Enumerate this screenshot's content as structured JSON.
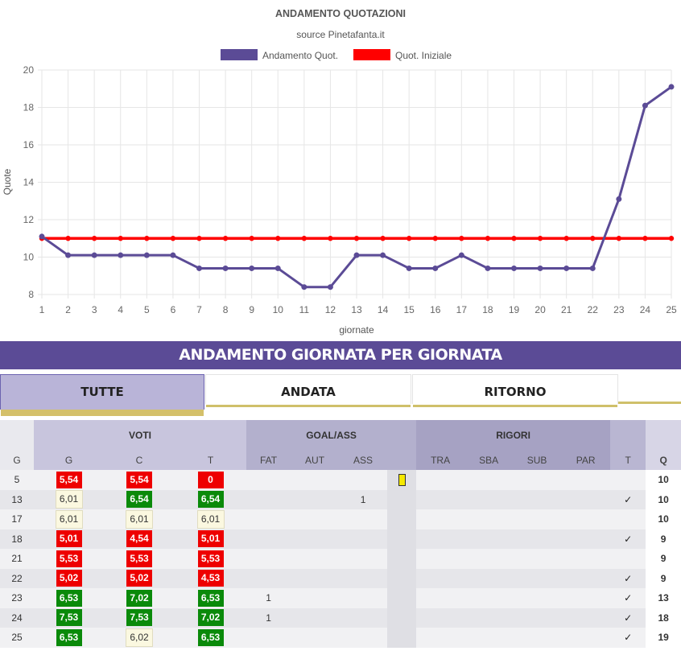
{
  "chart_data": {
    "type": "line",
    "title": "ANDAMENTO QUOTAZIONI",
    "subtitle": "source Pinetafanta.it",
    "xlabel": "giornate",
    "ylabel": "Quote",
    "x": [
      1,
      2,
      3,
      4,
      5,
      6,
      7,
      8,
      9,
      10,
      11,
      12,
      13,
      14,
      15,
      16,
      17,
      18,
      19,
      20,
      21,
      22,
      23,
      24,
      25
    ],
    "ylim": [
      8,
      20
    ],
    "yticks": [
      8,
      10,
      12,
      14,
      16,
      18,
      20
    ],
    "grid": true,
    "legend": "top",
    "series": [
      {
        "name": "Andamento Quot.",
        "color": "#5b4b96",
        "values": [
          11.1,
          10.1,
          10.1,
          10.1,
          10.1,
          10.1,
          9.4,
          9.4,
          9.4,
          9.4,
          8.4,
          8.4,
          10.1,
          10.1,
          9.4,
          9.4,
          10.1,
          9.4,
          9.4,
          9.4,
          9.4,
          9.4,
          13.1,
          18.1,
          19.1
        ]
      },
      {
        "name": "Quot. Iniziale",
        "color": "#ff0000",
        "values": [
          11,
          11,
          11,
          11,
          11,
          11,
          11,
          11,
          11,
          11,
          11,
          11,
          11,
          11,
          11,
          11,
          11,
          11,
          11,
          11,
          11,
          11,
          11,
          11,
          11
        ]
      }
    ]
  },
  "section_title": "ANDAMENTO GIORNATA PER GIORNATA",
  "tabs": [
    {
      "label": "TUTTE",
      "active": true
    },
    {
      "label": "ANDATA",
      "active": false
    },
    {
      "label": "RITORNO",
      "active": false
    }
  ],
  "table": {
    "groups": {
      "voti": "VOTI",
      "goal": "GOAL/ASS",
      "rigori": "RIGORI"
    },
    "columns": {
      "g": "G",
      "vg": "G",
      "vc": "C",
      "vt": "T",
      "fat": "FAT",
      "aut": "AUT",
      "ass": "ASS",
      "tra": "TRA",
      "sba": "SBA",
      "sub": "SUB",
      "par": "PAR",
      "t": "T",
      "q": "Q"
    },
    "rows": [
      {
        "g": "5",
        "vg": {
          "v": "5,54",
          "c": "red"
        },
        "vc": {
          "v": "5,54",
          "c": "red"
        },
        "vt": {
          "v": "0",
          "c": "red"
        },
        "fat": "",
        "aut": "",
        "ass": "",
        "card": "yellow",
        "t": "",
        "q": "10"
      },
      {
        "g": "13",
        "vg": {
          "v": "6,01",
          "c": "neutral"
        },
        "vc": {
          "v": "6,54",
          "c": "green"
        },
        "vt": {
          "v": "6,54",
          "c": "green"
        },
        "fat": "",
        "aut": "",
        "ass": "1",
        "card": "",
        "t": "✓",
        "q": "10"
      },
      {
        "g": "17",
        "vg": {
          "v": "6,01",
          "c": "neutral"
        },
        "vc": {
          "v": "6,01",
          "c": "neutral"
        },
        "vt": {
          "v": "6,01",
          "c": "neutral"
        },
        "fat": "",
        "aut": "",
        "ass": "",
        "card": "",
        "t": "",
        "q": "10"
      },
      {
        "g": "18",
        "vg": {
          "v": "5,01",
          "c": "red"
        },
        "vc": {
          "v": "4,54",
          "c": "red"
        },
        "vt": {
          "v": "5,01",
          "c": "red"
        },
        "fat": "",
        "aut": "",
        "ass": "",
        "card": "",
        "t": "✓",
        "q": "9"
      },
      {
        "g": "21",
        "vg": {
          "v": "5,53",
          "c": "red"
        },
        "vc": {
          "v": "5,53",
          "c": "red"
        },
        "vt": {
          "v": "5,53",
          "c": "red"
        },
        "fat": "",
        "aut": "",
        "ass": "",
        "card": "",
        "t": "",
        "q": "9"
      },
      {
        "g": "22",
        "vg": {
          "v": "5,02",
          "c": "red"
        },
        "vc": {
          "v": "5,02",
          "c": "red"
        },
        "vt": {
          "v": "4,53",
          "c": "red"
        },
        "fat": "",
        "aut": "",
        "ass": "",
        "card": "",
        "t": "✓",
        "q": "9"
      },
      {
        "g": "23",
        "vg": {
          "v": "6,53",
          "c": "green"
        },
        "vc": {
          "v": "7,02",
          "c": "green"
        },
        "vt": {
          "v": "6,53",
          "c": "green"
        },
        "fat": "1",
        "aut": "",
        "ass": "",
        "card": "",
        "t": "✓",
        "q": "13"
      },
      {
        "g": "24",
        "vg": {
          "v": "7,53",
          "c": "green"
        },
        "vc": {
          "v": "7,53",
          "c": "green"
        },
        "vt": {
          "v": "7,02",
          "c": "green"
        },
        "fat": "1",
        "aut": "",
        "ass": "",
        "card": "",
        "t": "✓",
        "q": "18"
      },
      {
        "g": "25",
        "vg": {
          "v": "6,53",
          "c": "green"
        },
        "vc": {
          "v": "6,02",
          "c": "neutral"
        },
        "vt": {
          "v": "6,53",
          "c": "green"
        },
        "fat": "",
        "aut": "",
        "ass": "",
        "card": "",
        "t": "✓",
        "q": "19"
      }
    ]
  }
}
